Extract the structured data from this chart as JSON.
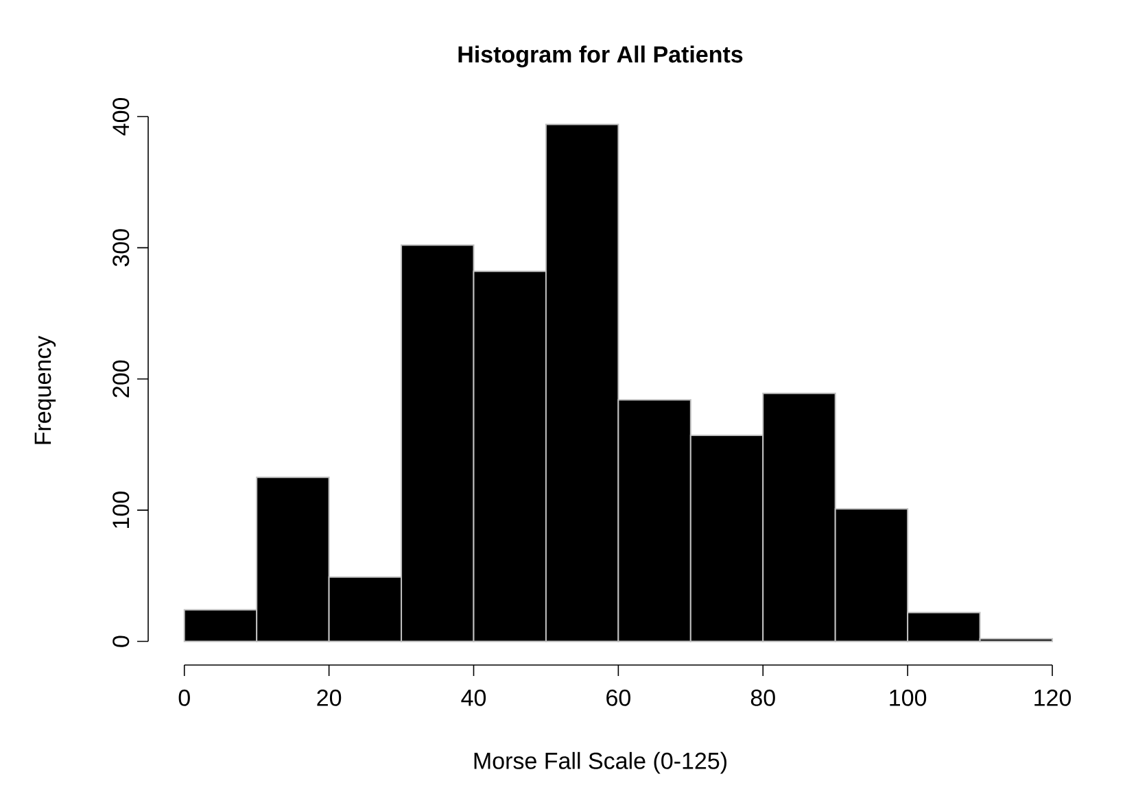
{
  "chart_data": {
    "type": "histogram",
    "title": "Histogram for All Patients",
    "xlabel": "Morse Fall Scale (0-125)",
    "ylabel": "Frequency",
    "bins": [
      0,
      10,
      20,
      30,
      40,
      50,
      60,
      70,
      80,
      90,
      100,
      110,
      120
    ],
    "values": [
      24,
      125,
      49,
      302,
      282,
      394,
      184,
      157,
      189,
      101,
      22,
      2
    ],
    "color": "#000000",
    "xlim": [
      -5,
      120
    ],
    "ylim": [
      -18,
      400
    ],
    "xticks": [
      0,
      20,
      40,
      60,
      80,
      100,
      120
    ],
    "yticks": [
      0,
      100,
      200,
      300,
      400
    ]
  }
}
